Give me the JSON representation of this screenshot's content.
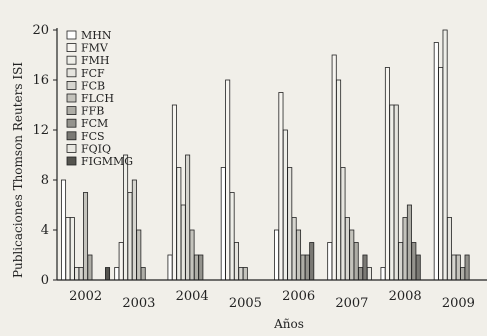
{
  "chart_data": {
    "type": "bar",
    "xlabel": "Años",
    "ylabel": "Publicaciones Thomson Reuters ISI",
    "ylim": [
      0,
      20
    ],
    "yticks": [
      "0",
      "4",
      "8",
      "12",
      "16",
      "20"
    ],
    "categories": [
      "2002",
      "2003",
      "2004",
      "2005",
      "2006",
      "2007",
      "2008",
      "2009"
    ],
    "legend_position": "top-left",
    "series": [
      {
        "name": "MHN",
        "color": "#ffffff",
        "values": [
          8,
          1,
          2,
          9,
          4,
          3,
          1,
          19
        ]
      },
      {
        "name": "FMV",
        "color": "#f7f5f0",
        "values": [
          5,
          3,
          14,
          16,
          15,
          18,
          17,
          17
        ]
      },
      {
        "name": "FMH",
        "color": "#eeeee8",
        "values": [
          5,
          10,
          9,
          7,
          12,
          16,
          14,
          20
        ]
      },
      {
        "name": "FCF",
        "color": "#e5e4de",
        "values": [
          1,
          7,
          6,
          3,
          9,
          9,
          14,
          5
        ]
      },
      {
        "name": "FCB",
        "color": "#d6d5cf",
        "values": [
          1,
          8,
          10,
          1,
          5,
          5,
          3,
          2
        ]
      },
      {
        "name": "FLCH",
        "color": "#c4c3bc",
        "values": [
          7,
          4,
          4,
          1,
          4,
          4,
          5,
          2
        ]
      },
      {
        "name": "FFB",
        "color": "#aeada6",
        "values": [
          2,
          1,
          2,
          0,
          2,
          3,
          6,
          1
        ]
      },
      {
        "name": "FCM",
        "color": "#94938d",
        "values": [
          0,
          0,
          2,
          0,
          2,
          1,
          3,
          2
        ]
      },
      {
        "name": "FCS",
        "color": "#7a7974",
        "values": [
          0,
          0,
          0,
          0,
          3,
          2,
          2,
          0
        ]
      },
      {
        "name": "FQIQ",
        "color": "#e8e7e1",
        "values": [
          0,
          0,
          0,
          0,
          0,
          1,
          0,
          0
        ]
      },
      {
        "name": "FIGMMG",
        "color": "#55544f",
        "values": [
          1,
          0,
          0,
          0,
          0,
          0,
          0,
          0
        ]
      }
    ]
  }
}
